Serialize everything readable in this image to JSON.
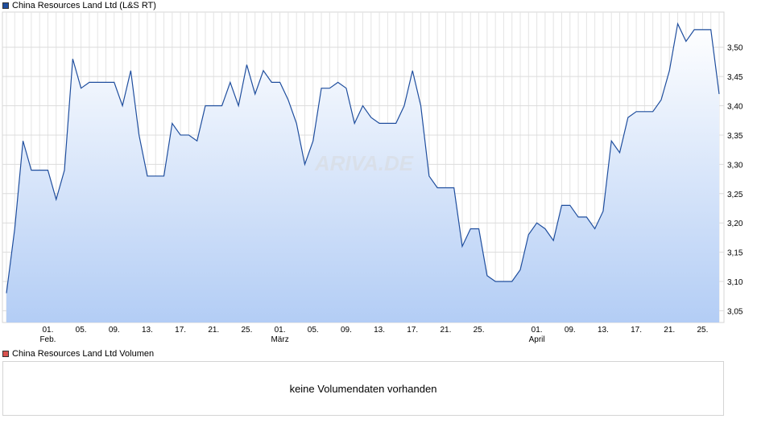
{
  "legend": {
    "price_label": "China Resources Land Ltd (L&S RT)",
    "price_color": "#1f4e9e",
    "volume_label": "China Resources Land Ltd Volumen",
    "volume_color": "#d9534f"
  },
  "watermark": "ARIVA.DE",
  "volume_message": "keine Volumendaten vorhanden",
  "chart_data": {
    "type": "area",
    "title": "",
    "series": [
      {
        "name": "China Resources Land Ltd (L&S RT)",
        "color": "#1f4e9e",
        "values": [
          3.08,
          3.19,
          3.34,
          3.29,
          3.29,
          3.29,
          3.24,
          3.29,
          3.48,
          3.43,
          3.44,
          3.44,
          3.44,
          3.44,
          3.4,
          3.46,
          3.35,
          3.28,
          3.28,
          3.28,
          3.37,
          3.35,
          3.35,
          3.34,
          3.4,
          3.4,
          3.4,
          3.44,
          3.4,
          3.47,
          3.42,
          3.46,
          3.44,
          3.44,
          3.41,
          3.37,
          3.3,
          3.34,
          3.43,
          3.43,
          3.44,
          3.43,
          3.37,
          3.4,
          3.38,
          3.37,
          3.37,
          3.37,
          3.4,
          3.46,
          3.4,
          3.28,
          3.26,
          3.26,
          3.26,
          3.16,
          3.19,
          3.19,
          3.11,
          3.1,
          3.1,
          3.1,
          3.12,
          3.18,
          3.2,
          3.19,
          3.17,
          3.23,
          3.23,
          3.21,
          3.21,
          3.19,
          3.22,
          3.34,
          3.32,
          3.38,
          3.39,
          3.39,
          3.39,
          3.41,
          3.46,
          3.54,
          3.51,
          3.53,
          3.53,
          3.53,
          3.42
        ]
      }
    ],
    "ylim": [
      3.03,
      3.56
    ],
    "y_ticks": [
      "3,05",
      "3,10",
      "3,15",
      "3,20",
      "3,25",
      "3,30",
      "3,35",
      "3,40",
      "3,45",
      "3,50"
    ],
    "y_tick_values": [
      3.05,
      3.1,
      3.15,
      3.2,
      3.25,
      3.3,
      3.35,
      3.4,
      3.45,
      3.5
    ],
    "x_ticks": [
      {
        "label": "01.",
        "sub": "Feb.",
        "index": 5
      },
      {
        "label": "05.",
        "sub": "",
        "index": 9
      },
      {
        "label": "09.",
        "sub": "",
        "index": 13
      },
      {
        "label": "13.",
        "sub": "",
        "index": 17
      },
      {
        "label": "17.",
        "sub": "",
        "index": 21
      },
      {
        "label": "21.",
        "sub": "",
        "index": 25
      },
      {
        "label": "25.",
        "sub": "",
        "index": 29
      },
      {
        "label": "01.",
        "sub": "März",
        "index": 33
      },
      {
        "label": "05.",
        "sub": "",
        "index": 37
      },
      {
        "label": "09.",
        "sub": "",
        "index": 41
      },
      {
        "label": "13.",
        "sub": "",
        "index": 45
      },
      {
        "label": "17.",
        "sub": "",
        "index": 49
      },
      {
        "label": "21.",
        "sub": "",
        "index": 53
      },
      {
        "label": "25.",
        "sub": "",
        "index": 57
      },
      {
        "label": "01.",
        "sub": "April",
        "index": 64
      },
      {
        "label": "09.",
        "sub": "",
        "index": 68
      },
      {
        "label": "09.",
        "sub": "",
        "index": 68
      },
      {
        "label": "13.",
        "sub": "",
        "index": 72
      },
      {
        "label": "17.",
        "sub": "",
        "index": 76
      },
      {
        "label": "21.",
        "sub": "",
        "index": 80
      },
      {
        "label": "25.",
        "sub": "",
        "index": 84
      }
    ],
    "grid": true,
    "y_axis_side": "right"
  }
}
